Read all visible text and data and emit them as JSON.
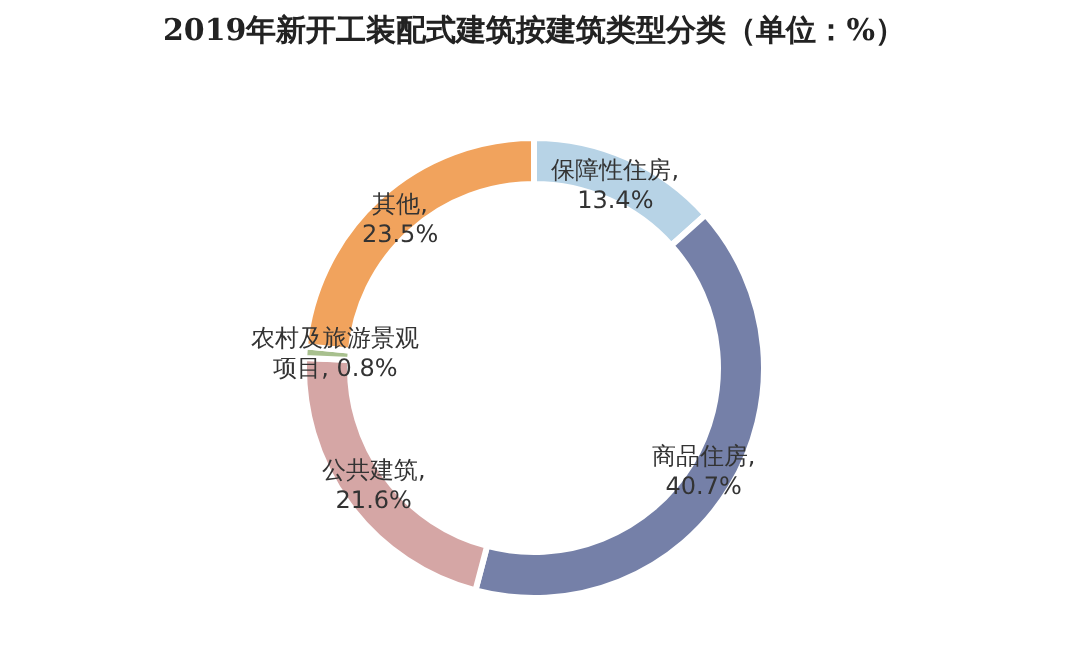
{
  "chart_data": {
    "type": "donut",
    "title": "2019年新开工装配式建筑按建筑类型分类（单位：%）",
    "categories": [
      "保障性住房",
      "商品住房",
      "公共建筑",
      "农村及旅游景观项目",
      "其他"
    ],
    "values": [
      13.4,
      40.7,
      21.6,
      0.8,
      23.5
    ],
    "value_labels": [
      ", 13.4%",
      ", 40.7%",
      ", 21.6%",
      ", 0.8%",
      ", 23.5%"
    ],
    "colors": [
      "#b7d3e6",
      "#7580a8",
      "#d5a6a5",
      "#a8c08e",
      "#f1a35d"
    ]
  }
}
